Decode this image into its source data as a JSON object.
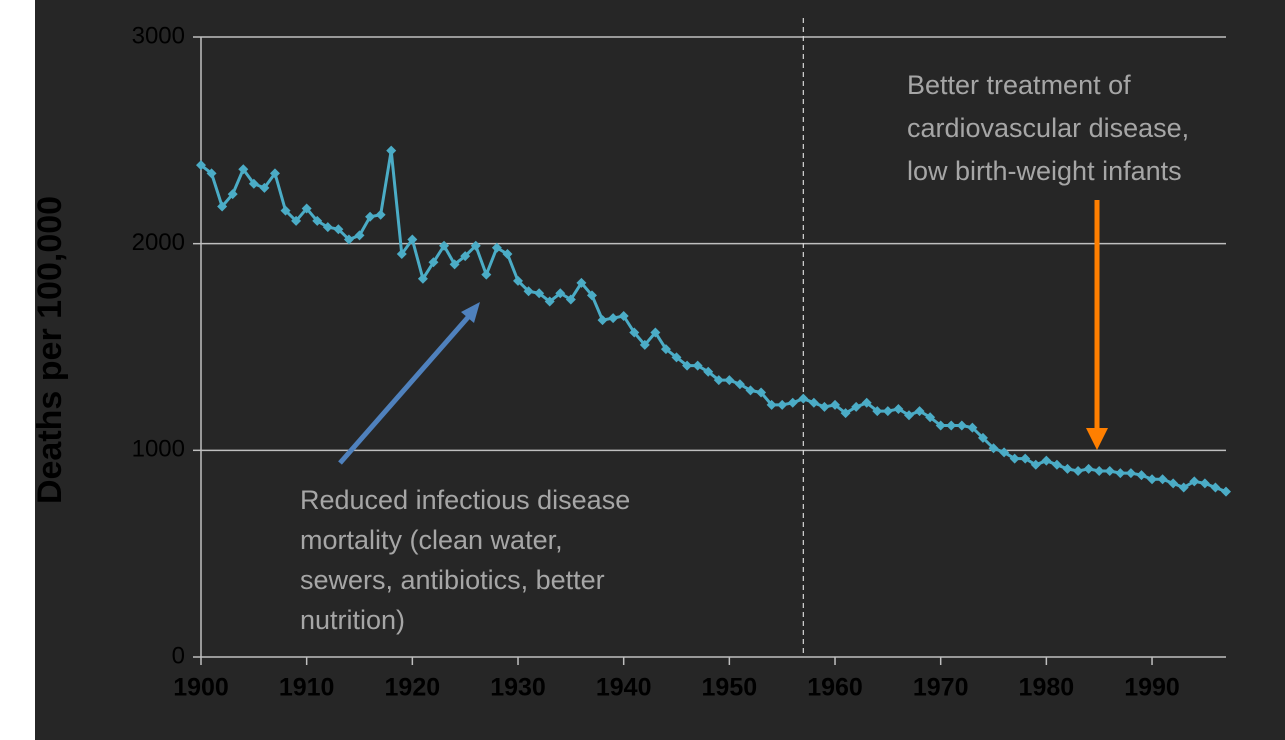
{
  "chart_data": {
    "type": "line",
    "y_label": "Deaths per 100,000",
    "x": [
      1900,
      1901,
      1902,
      1903,
      1904,
      1905,
      1906,
      1907,
      1908,
      1909,
      1910,
      1911,
      1912,
      1913,
      1914,
      1915,
      1916,
      1917,
      1918,
      1919,
      1920,
      1921,
      1922,
      1923,
      1924,
      1925,
      1926,
      1927,
      1928,
      1929,
      1930,
      1931,
      1932,
      1933,
      1934,
      1935,
      1936,
      1937,
      1938,
      1939,
      1940,
      1941,
      1942,
      1943,
      1944,
      1945,
      1946,
      1947,
      1948,
      1949,
      1950,
      1951,
      1952,
      1953,
      1954,
      1955,
      1956,
      1957,
      1958,
      1959,
      1960,
      1961,
      1962,
      1963,
      1964,
      1965,
      1966,
      1967,
      1968,
      1969,
      1970,
      1971,
      1972,
      1973,
      1974,
      1975,
      1976,
      1977,
      1978,
      1979,
      1980,
      1981,
      1982,
      1983,
      1984,
      1985,
      1986,
      1987,
      1988,
      1989,
      1990,
      1991,
      1992,
      1993,
      1994,
      1995,
      1996,
      1997
    ],
    "series": [
      {
        "color": "#4bacc6",
        "values": [
          2380,
          2340,
          2180,
          2240,
          2360,
          2290,
          2270,
          2340,
          2160,
          2110,
          2170,
          2110,
          2080,
          2070,
          2020,
          2040,
          2130,
          2140,
          2450,
          1950,
          2020,
          1830,
          1910,
          1990,
          1900,
          1940,
          1990,
          1850,
          1980,
          1950,
          1820,
          1770,
          1760,
          1720,
          1760,
          1730,
          1810,
          1750,
          1630,
          1640,
          1650,
          1570,
          1510,
          1570,
          1490,
          1450,
          1410,
          1410,
          1380,
          1340,
          1340,
          1320,
          1290,
          1280,
          1220,
          1220,
          1230,
          1250,
          1230,
          1210,
          1220,
          1180,
          1210,
          1230,
          1190,
          1190,
          1200,
          1170,
          1190,
          1160,
          1120,
          1120,
          1120,
          1110,
          1060,
          1010,
          990,
          960,
          960,
          930,
          950,
          930,
          910,
          900,
          910,
          900,
          900,
          890,
          890,
          880,
          860,
          860,
          840,
          820,
          850,
          840,
          820,
          800
        ]
      }
    ],
    "xlim": [
      1900,
      1997
    ],
    "xticks": [
      1900,
      1910,
      1920,
      1930,
      1940,
      1950,
      1960,
      1970,
      1980,
      1990
    ],
    "ylim": [
      0,
      3000
    ],
    "yticks": [
      0,
      1000,
      2000,
      3000
    ],
    "grid": true,
    "reference_x": 1957,
    "annotations": [
      {
        "lines": [
          "Reduced infectious disease",
          "mortality (clean water,",
          "sewers, antibiotics, better",
          "nutrition)"
        ],
        "color": "#4f81bd"
      },
      {
        "lines": [
          "Better treatment of",
          "cardiovascular disease,",
          "low birth-weight infants"
        ],
        "color": "#ff7f00"
      }
    ]
  }
}
